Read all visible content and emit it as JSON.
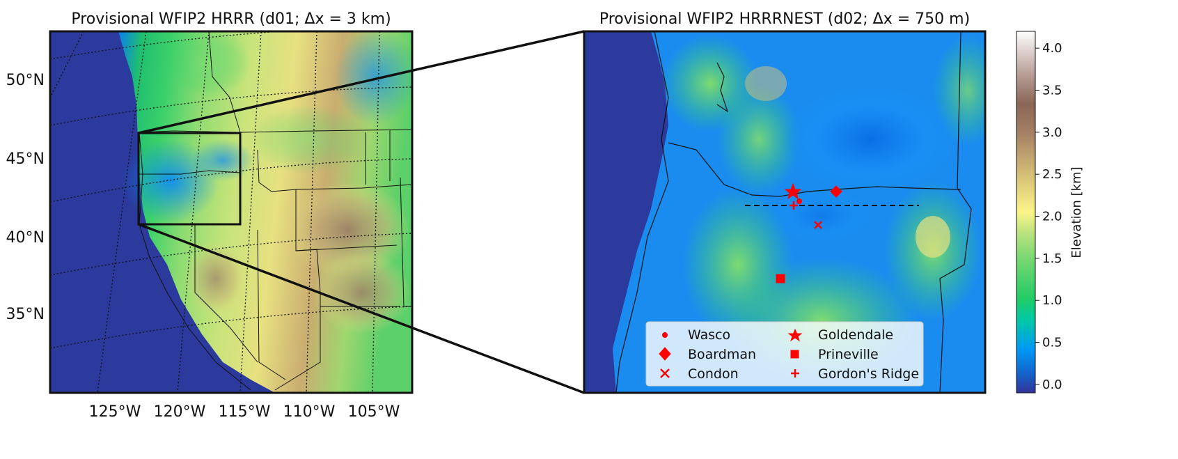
{
  "left_map": {
    "title": "Provisional WFIP2 HRRR (d01; Δx = 3 km)",
    "lat_labels": [
      "50°N",
      "45°N",
      "40°N",
      "35°N"
    ],
    "lon_labels": [
      "125°W",
      "120°W",
      "115°W",
      "110°W",
      "105°W"
    ],
    "inset_box": "d02 domain"
  },
  "right_map": {
    "title": "Provisional WFIP2 HRRRNEST (d02; Δx = 750 m)"
  },
  "colorbar": {
    "label": "Elevation [km]",
    "ticks": [
      "0.0",
      "0.5",
      "1.0",
      "1.5",
      "2.0",
      "2.5",
      "3.0",
      "3.5",
      "4.0"
    ],
    "range": [
      -0.1,
      4.2
    ],
    "colormap": "terrain"
  },
  "legend": {
    "items": [
      {
        "label": "Wasco",
        "marker": "dot"
      },
      {
        "label": "Goldendale",
        "marker": "star"
      },
      {
        "label": "Boardman",
        "marker": "diamond"
      },
      {
        "label": "Prineville",
        "marker": "square"
      },
      {
        "label": "Condon",
        "marker": "x"
      },
      {
        "label": "Gordon's Ridge",
        "marker": "plus"
      }
    ],
    "marker_color": "#ff0000"
  },
  "colors": {
    "ocean": "#2b3a9c",
    "low": "#1a8cff",
    "mid": "#29c76a",
    "high": "#e9e484",
    "peak": "#8a6b5a"
  }
}
